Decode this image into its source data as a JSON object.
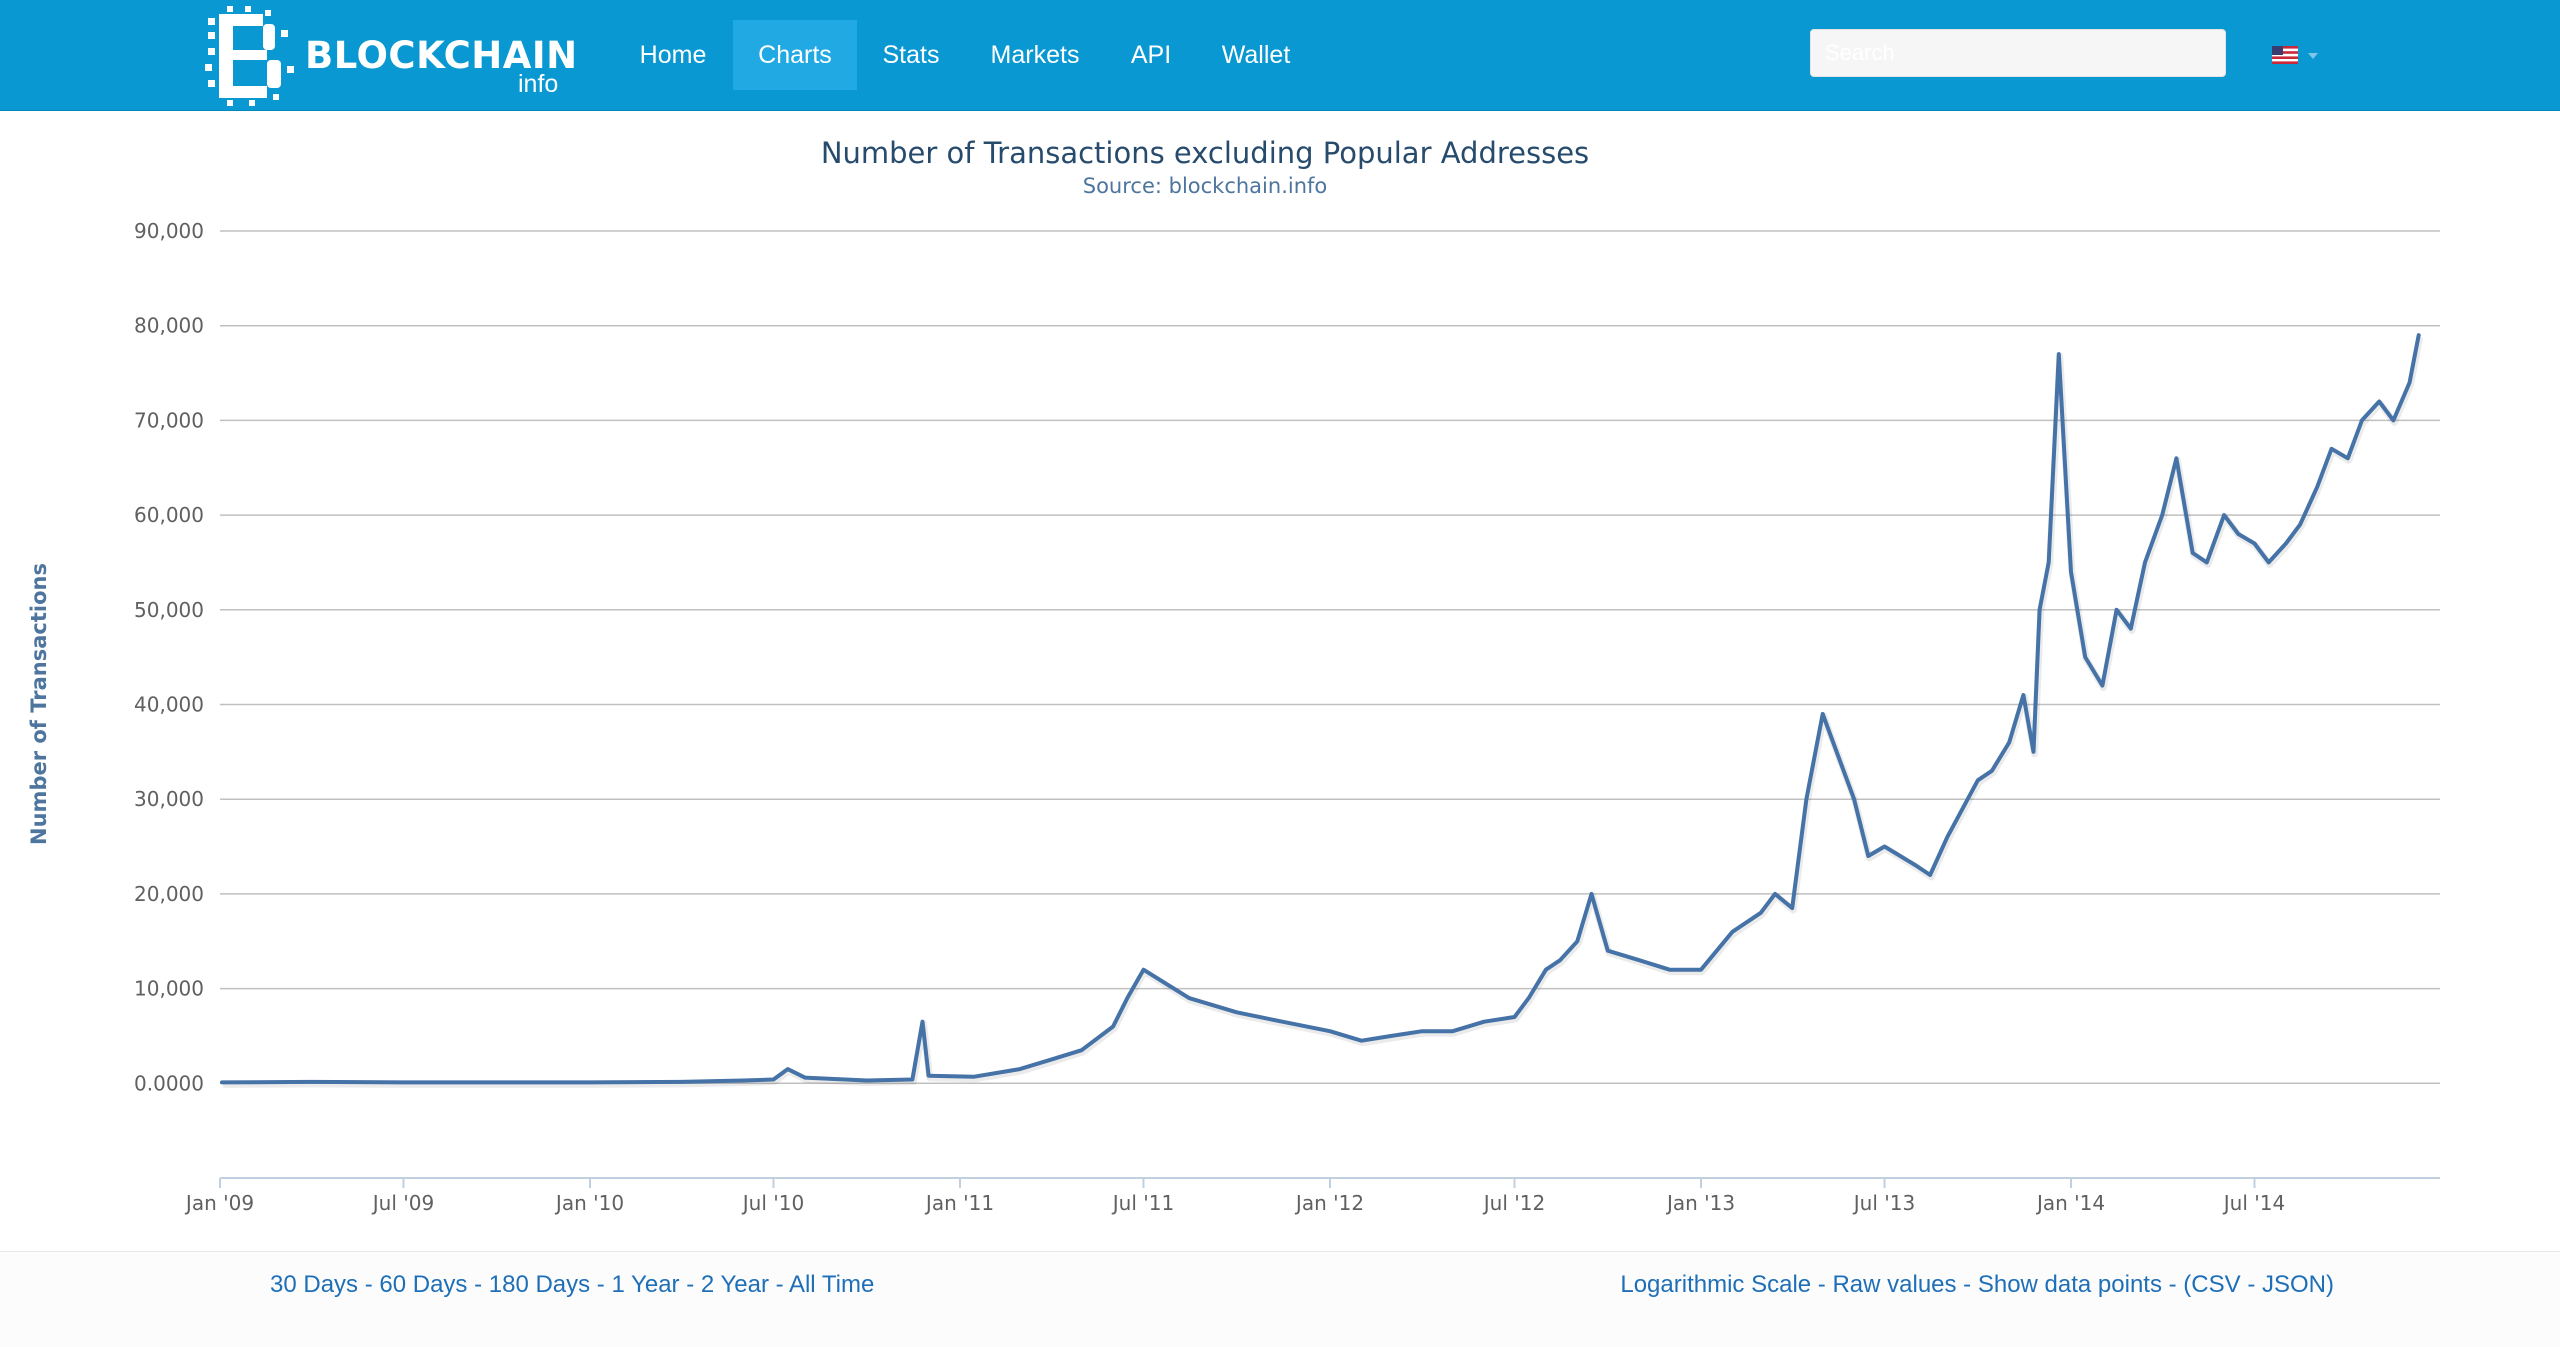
{
  "navbar": {
    "brand_name": "BLOCKCHAIN",
    "brand_sub": "info",
    "items": [
      {
        "label": "Home",
        "active": false
      },
      {
        "label": "Charts",
        "active": true
      },
      {
        "label": "Stats",
        "active": false
      },
      {
        "label": "Markets",
        "active": false
      },
      {
        "label": "API",
        "active": false
      },
      {
        "label": "Wallet",
        "active": false
      }
    ],
    "search_placeholder": "Search",
    "language_icon": "us-flag-icon",
    "accent_color": "#0a98d2"
  },
  "chart_data": {
    "type": "line",
    "title": "Number of Transactions excluding Popular Addresses",
    "subtitle": "Source: blockchain.info",
    "xlabel": "",
    "ylabel": "Number of Transactions",
    "xlim": [
      "2009-01-01",
      "2014-12-31"
    ],
    "ylim": [
      -10000,
      90000
    ],
    "yticks": [
      0,
      10000,
      20000,
      30000,
      40000,
      50000,
      60000,
      70000,
      80000,
      90000
    ],
    "ytick_labels": [
      "0.0000",
      "10,000",
      "20,000",
      "30,000",
      "40,000",
      "50,000",
      "60,000",
      "70,000",
      "80,000",
      "90,000"
    ],
    "xticks": [
      "2009-01-01",
      "2009-07-01",
      "2010-01-01",
      "2010-07-01",
      "2011-01-01",
      "2011-07-01",
      "2012-01-01",
      "2012-07-01",
      "2013-01-01",
      "2013-07-01",
      "2014-01-01",
      "2014-07-01"
    ],
    "xtick_labels": [
      "Jan '09",
      "Jul '09",
      "Jan '10",
      "Jul '10",
      "Jan '11",
      "Jul '11",
      "Jan '12",
      "Jul '12",
      "Jan '13",
      "Jul '13",
      "Jan '14",
      "Jul '14"
    ],
    "grid": true,
    "line_color": "#4572a7",
    "series": [
      {
        "x": [
          "2009-01-03",
          "2009-04-01",
          "2009-07-01",
          "2009-10-01",
          "2010-01-01",
          "2010-04-01",
          "2010-06-01",
          "2010-07-01",
          "2010-07-15",
          "2010-08-01",
          "2010-10-01",
          "2010-11-15",
          "2010-11-25",
          "2010-12-01",
          "2011-01-15",
          "2011-03-01",
          "2011-04-01",
          "2011-05-01",
          "2011-06-01",
          "2011-06-15",
          "2011-07-01",
          "2011-08-15",
          "2011-10-01",
          "2011-11-15",
          "2012-01-01",
          "2012-02-01",
          "2012-03-01",
          "2012-04-01",
          "2012-05-01",
          "2012-06-01",
          "2012-07-01",
          "2012-07-15",
          "2012-08-01",
          "2012-08-15",
          "2012-09-01",
          "2012-09-15",
          "2012-10-01",
          "2012-11-01",
          "2012-12-01",
          "2013-01-01",
          "2013-02-01",
          "2013-03-01",
          "2013-03-15",
          "2013-04-01",
          "2013-04-15",
          "2013-05-01",
          "2013-06-01",
          "2013-06-15",
          "2013-07-01",
          "2013-08-01",
          "2013-08-15",
          "2013-09-01",
          "2013-10-01",
          "2013-10-15",
          "2013-11-01",
          "2013-11-15",
          "2013-11-25",
          "2013-12-01",
          "2013-12-10",
          "2013-12-20",
          "2014-01-01",
          "2014-01-15",
          "2014-02-01",
          "2014-02-15",
          "2014-03-01",
          "2014-03-15",
          "2014-04-01",
          "2014-04-15",
          "2014-05-01",
          "2014-05-15",
          "2014-06-01",
          "2014-06-15",
          "2014-07-01",
          "2014-07-15",
          "2014-08-01",
          "2014-08-15",
          "2014-09-01",
          "2014-09-15",
          "2014-10-01",
          "2014-10-15",
          "2014-11-01",
          "2014-11-15",
          "2014-12-01",
          "2014-12-10"
        ],
        "values": [
          100,
          150,
          100,
          100,
          100,
          150,
          300,
          400,
          1500,
          600,
          300,
          400,
          6500,
          800,
          700,
          1500,
          2500,
          3500,
          6000,
          9000,
          12000,
          9000,
          7500,
          6500,
          5500,
          4500,
          5000,
          5500,
          5500,
          6500,
          7000,
          9000,
          12000,
          13000,
          15000,
          20000,
          14000,
          13000,
          12000,
          12000,
          16000,
          18000,
          20000,
          18500,
          30000,
          39000,
          30000,
          24000,
          25000,
          23000,
          22000,
          26000,
          32000,
          33000,
          36000,
          41000,
          35000,
          50000,
          55000,
          77000,
          54000,
          45000,
          42000,
          50000,
          48000,
          55000,
          60000,
          66000,
          56000,
          55000,
          60000,
          58000,
          57000,
          55000,
          57000,
          59000,
          63000,
          67000,
          66000,
          70000,
          72000,
          70000,
          74000,
          79000
        ]
      }
    ]
  },
  "footer": {
    "time_ranges": [
      "30 Days",
      "60 Days",
      "180 Days",
      "1 Year",
      "2 Year",
      "All Time"
    ],
    "options": [
      "Logarithmic Scale",
      "Raw values",
      "Show data points"
    ],
    "exports": [
      "CSV",
      "JSON"
    ]
  }
}
